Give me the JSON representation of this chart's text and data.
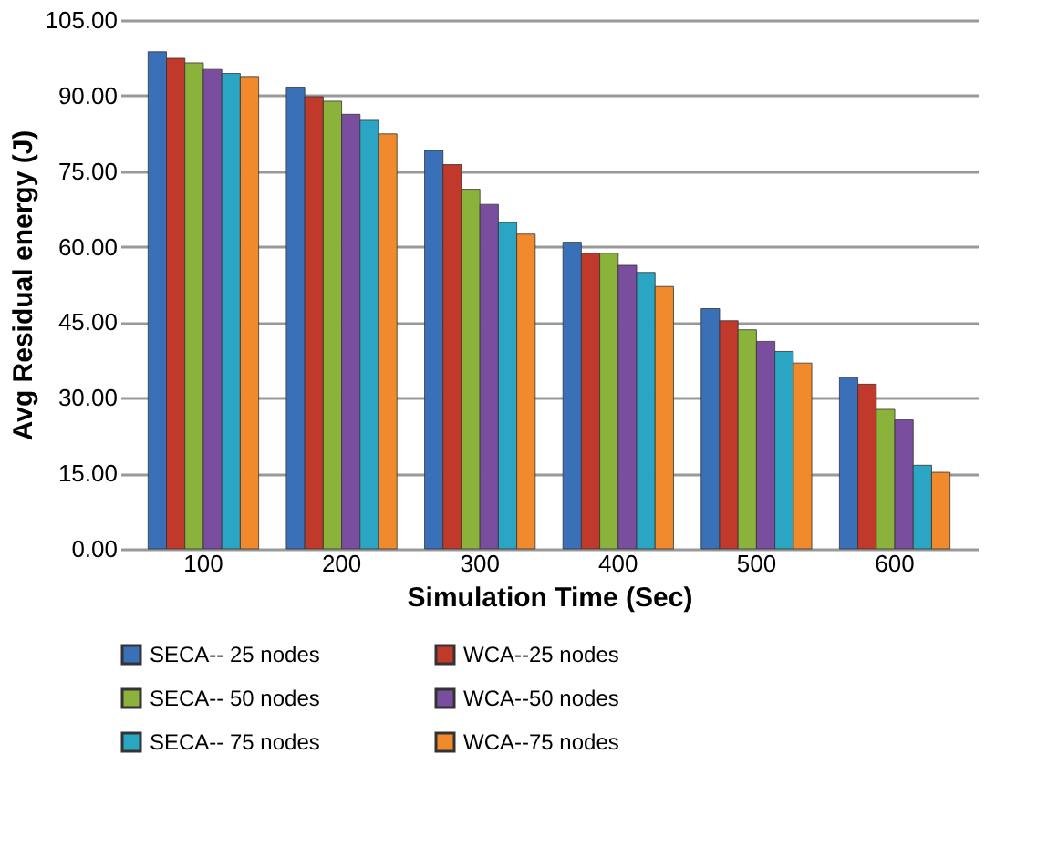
{
  "chart_data": {
    "type": "bar",
    "xlabel": "Simulation Time (Sec)",
    "ylabel": "Avg Residual energy (J)",
    "categories": [
      "100",
      "200",
      "300",
      "400",
      "500",
      "600"
    ],
    "series": [
      {
        "name": "SECA-- 25 nodes",
        "color": "#3a70b8",
        "values": [
          98.7,
          91.7,
          79.1,
          60.9,
          47.7,
          34.0
        ]
      },
      {
        "name": "WCA--25 nodes",
        "color": "#c0392b",
        "values": [
          97.4,
          89.8,
          76.3,
          58.7,
          45.3,
          32.7
        ]
      },
      {
        "name": "SECA-- 50 nodes",
        "color": "#8bb33c",
        "values": [
          96.5,
          88.9,
          71.4,
          58.7,
          43.5,
          27.7
        ]
      },
      {
        "name": "WCA--50 nodes",
        "color": "#7a4e9e",
        "values": [
          95.2,
          86.3,
          68.4,
          56.3,
          41.2,
          25.6
        ]
      },
      {
        "name": "SECA-- 75 nodes",
        "color": "#2aa6c4",
        "values": [
          94.4,
          85.1,
          64.8,
          54.9,
          39.2,
          16.6
        ]
      },
      {
        "name": "WCA--75 nodes",
        "color": "#f08a2c",
        "values": [
          93.8,
          82.4,
          62.5,
          52.1,
          36.9,
          15.2
        ]
      }
    ],
    "ylim": [
      0,
      105
    ],
    "yticks": [
      {
        "value": 0,
        "label": "0.00"
      },
      {
        "value": 15,
        "label": "15.00"
      },
      {
        "value": 30,
        "label": "30.00"
      },
      {
        "value": 45,
        "label": "45.00"
      },
      {
        "value": 60,
        "label": "60.00"
      },
      {
        "value": 75,
        "label": "75.00"
      },
      {
        "value": 90,
        "label": "90.00"
      },
      {
        "value": 105,
        "label": "105.00"
      }
    ],
    "grid": "y",
    "legend": "bottom"
  }
}
